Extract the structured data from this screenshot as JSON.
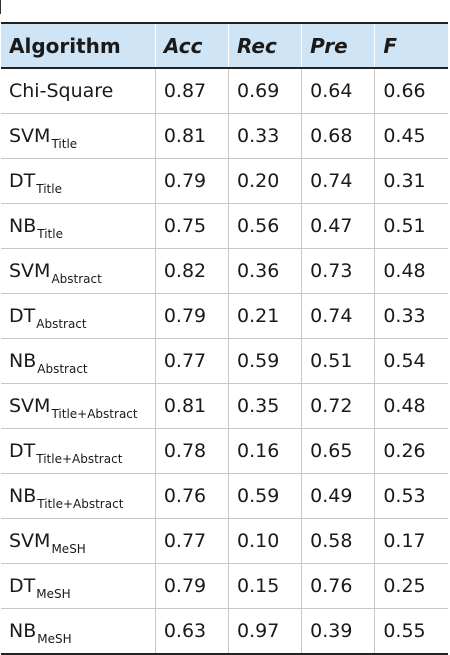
{
  "table": {
    "headers": [
      "Algorithm",
      "Acc",
      "Rec",
      "Pre",
      "F"
    ],
    "rows": [
      {
        "algorithm": "Chi-Square",
        "sub": "",
        "acc": "0.87",
        "rec": "0.69",
        "pre": "0.64",
        "f": "0.66"
      },
      {
        "algorithm": "SVM",
        "sub": "Title",
        "acc": "0.81",
        "rec": "0.33",
        "pre": "0.68",
        "f": "0.45"
      },
      {
        "algorithm": "DT",
        "sub": "Title",
        "acc": "0.79",
        "rec": "0.20",
        "pre": "0.74",
        "f": "0.31"
      },
      {
        "algorithm": "NB",
        "sub": "Title",
        "acc": "0.75",
        "rec": "0.56",
        "pre": "0.47",
        "f": "0.51"
      },
      {
        "algorithm": "SVM",
        "sub": "Abstract",
        "acc": "0.82",
        "rec": "0.36",
        "pre": "0.73",
        "f": "0.48"
      },
      {
        "algorithm": "DT",
        "sub": "Abstract",
        "acc": "0.79",
        "rec": "0.21",
        "pre": "0.74",
        "f": "0.33"
      },
      {
        "algorithm": "NB",
        "sub": "Abstract",
        "acc": "0.77",
        "rec": "0.59",
        "pre": "0.51",
        "f": "0.54"
      },
      {
        "algorithm": "SVM",
        "sub": "Title+Abstract",
        "acc": "0.81",
        "rec": "0.35",
        "pre": "0.72",
        "f": "0.48"
      },
      {
        "algorithm": "DT",
        "sub": "Title+Abstract",
        "acc": "0.78",
        "rec": "0.16",
        "pre": "0.65",
        "f": "0.26"
      },
      {
        "algorithm": "NB",
        "sub": "Title+Abstract",
        "acc": "0.76",
        "rec": "0.59",
        "pre": "0.49",
        "f": "0.53"
      },
      {
        "algorithm": "SVM",
        "sub": "MeSH",
        "acc": "0.77",
        "rec": "0.10",
        "pre": "0.58",
        "f": "0.17"
      },
      {
        "algorithm": "DT",
        "sub": "MeSH",
        "acc": "0.79",
        "rec": "0.15",
        "pre": "0.76",
        "f": "0.25"
      },
      {
        "algorithm": "NB",
        "sub": "MeSH",
        "acc": "0.63",
        "rec": "0.97",
        "pre": "0.39",
        "f": "0.55"
      }
    ]
  },
  "colors": {
    "header_background": "#cfe4f5",
    "rule": "#222222",
    "grid": "#c8c8c8"
  }
}
